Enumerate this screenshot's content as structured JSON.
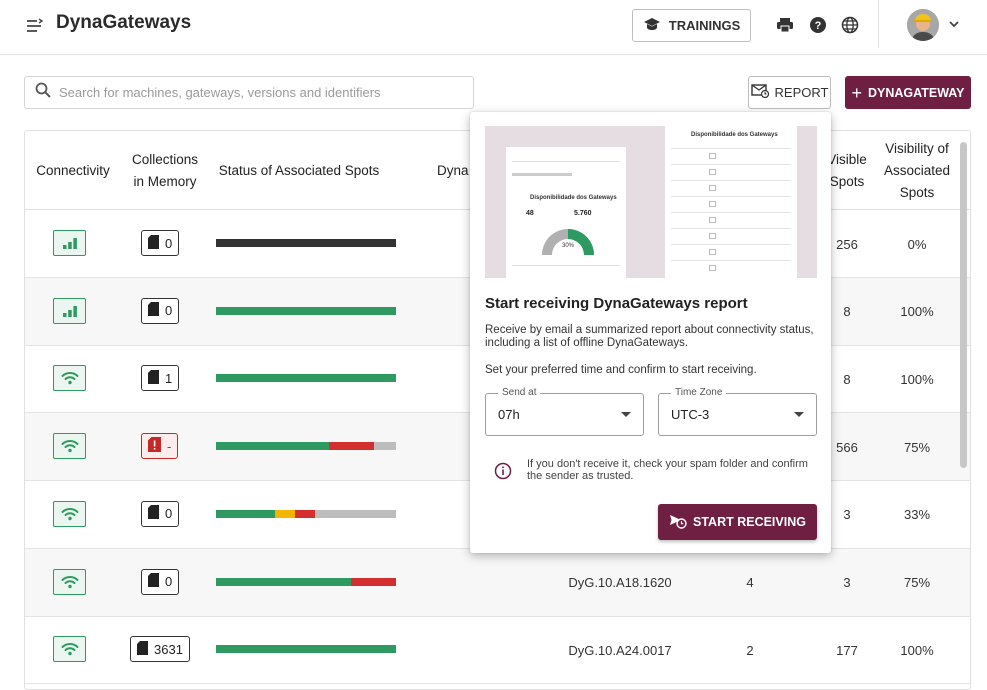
{
  "app": {
    "title": "DynaGateways"
  },
  "header": {
    "trainings_label": "TRAININGS"
  },
  "toolbar": {
    "search_placeholder": "Search for machines, gateways, versions and identifiers",
    "report_label": "REPORT",
    "add_label": "DYNAGATEWAY"
  },
  "table": {
    "columns": {
      "connectivity": "Connectivity",
      "memory_1": "Collections",
      "memory_2": "in Memory",
      "status": "Status of Associated Spots",
      "dyna": "Dyna",
      "visible_1": "Visible",
      "visible_2": "Spots",
      "visibility_1": "Visibility of",
      "visibility_2": "Associated",
      "visibility_3": "Spots"
    },
    "rows": [
      {
        "connectivity": "signal-bars",
        "memory": "0",
        "status": [
          {
            "color": "#333333",
            "pct": 100
          }
        ],
        "version": "",
        "associated": "",
        "visible": "256",
        "visibility": "0%"
      },
      {
        "connectivity": "signal-bars",
        "memory": "0",
        "status": [
          {
            "color": "#2e9a62",
            "pct": 100
          }
        ],
        "version": "",
        "associated": "",
        "visible": "8",
        "visibility": "100%"
      },
      {
        "connectivity": "wifi",
        "memory": "1",
        "status": [
          {
            "color": "#2e9a62",
            "pct": 100
          }
        ],
        "version": "",
        "associated": "",
        "visible": "8",
        "visibility": "100%"
      },
      {
        "connectivity": "wifi",
        "memory": "-",
        "memory_error": true,
        "status": [
          {
            "color": "#2e9a62",
            "pct": 63
          },
          {
            "color": "#d32f2f",
            "pct": 25
          },
          {
            "color": "#bdbdbd",
            "pct": 12
          }
        ],
        "version": "",
        "associated": "",
        "visible": "566",
        "visibility": "75%"
      },
      {
        "connectivity": "wifi",
        "memory": "0",
        "status": [
          {
            "color": "#2e9a62",
            "pct": 33
          },
          {
            "color": "#f5b400",
            "pct": 11
          },
          {
            "color": "#d32f2f",
            "pct": 11
          },
          {
            "color": "#bdbdbd",
            "pct": 45
          }
        ],
        "version": "",
        "associated": "",
        "visible": "3",
        "visibility": "33%"
      },
      {
        "connectivity": "wifi",
        "memory": "0",
        "status": [
          {
            "color": "#2e9a62",
            "pct": 75
          },
          {
            "color": "#d32f2f",
            "pct": 25
          }
        ],
        "version": "DyG.10.A18.1620",
        "associated": "4",
        "visible": "3",
        "visibility": "75%"
      },
      {
        "connectivity": "wifi",
        "memory": "3631",
        "status": [
          {
            "color": "#2e9a62",
            "pct": 100
          }
        ],
        "version": "DyG.10.A24.0017",
        "associated": "2",
        "visible": "177",
        "visibility": "100%"
      }
    ]
  },
  "popover": {
    "title": "Start receiving DynaGateways report",
    "desc": "Receive by email a summarized report about connectivity status, including a list of offline DynaGateways.",
    "instruction": "Set your preferred time and confirm to start receiving.",
    "send_at_label": "Send at",
    "send_at_value": "07h",
    "timezone_label": "Time Zone",
    "timezone_value": "UTC-3",
    "info": "If you don't receive it, check your spam folder and confirm the sender as trusted.",
    "start_label": "START RECEIVING",
    "preview": {
      "left_title": "Disponibilidade dos Gateways",
      "right_title": "Disponibilidade dos Gateways",
      "stat_1": "48",
      "stat_2": "5.760",
      "gauge_pct": "30%"
    }
  },
  "colors": {
    "brand": "#6e1f42",
    "ok": "#2e9a62",
    "error": "#d32f2f",
    "warn": "#f5b400"
  }
}
